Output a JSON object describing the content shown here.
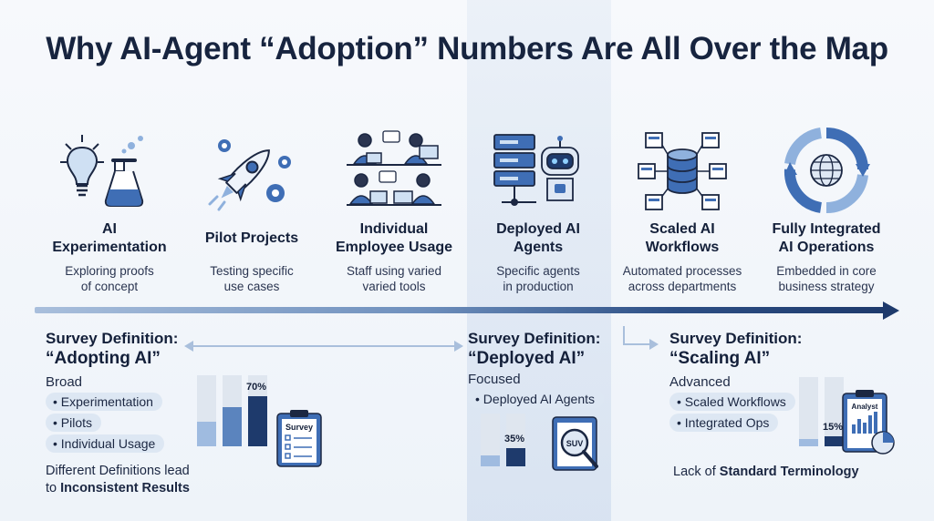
{
  "title": "Why AI-Agent “Adoption” Numbers Are All Over the Map",
  "stages": [
    {
      "title": "AI\nExperimentation",
      "desc": "Exploring proofs\nof concept",
      "icon": "lightbulb-flask-icon"
    },
    {
      "title": "Pilot Projects",
      "desc": "Testing specific\nuse cases",
      "icon": "rocket-gears-icon"
    },
    {
      "title": "Individual\nEmployee Usage",
      "desc": "Staff using varied\nvaried tools",
      "icon": "employees-laptops-icon"
    },
    {
      "title": "Deployed AI\nAgents",
      "desc": "Specific agents\nin production",
      "icon": "robot-server-icon"
    },
    {
      "title": "Scaled AI\nWorkflows",
      "desc": "Automated processes\nacross departments",
      "icon": "database-network-icon"
    },
    {
      "title": "Fully Integrated\nAI Operations",
      "desc": "Embedded in core\nbusiness strategy",
      "icon": "globe-cycle-icon"
    }
  ],
  "surveys": [
    {
      "title": "Survey Definition:",
      "quote": "“Adopting AI”",
      "scope": "Broad",
      "items": [
        "Experimentation",
        "Pilots",
        "Individual Usage"
      ],
      "chart_label": "70%",
      "clipboard_label": "Survey"
    },
    {
      "title": "Survey Definition:",
      "quote": "“Deployed AI”",
      "scope": "Focused",
      "items": [
        "Deployed AI Agents"
      ],
      "chart_label": "35%",
      "clipboard_label": "SUV"
    },
    {
      "title": "Survey Definition:",
      "quote": "“Scaling AI”",
      "scope": "Advanced",
      "items": [
        "Scaled Workflows",
        "Integrated Ops"
      ],
      "chart_label": "15%",
      "clipboard_label": "Analyst"
    }
  ],
  "footnotes": {
    "left_line1": "Different Definitions lead",
    "left_line2_prefix": "to ",
    "left_line2_bold": "Inconsistent Results",
    "right_prefix": "Lack of ",
    "right_bold": "Standard Terminology"
  },
  "chart_data": [
    {
      "type": "bar",
      "values": [
        0.35,
        0.55,
        0.7
      ],
      "highlight_label": "70%"
    },
    {
      "type": "bar",
      "values": [
        0.2,
        0.35
      ],
      "highlight_label": "35%"
    },
    {
      "type": "bar",
      "values": [
        0.1,
        0.15
      ],
      "highlight_label": "15%"
    }
  ],
  "colors": {
    "dark_navy": "#1e3a6c",
    "mid_blue": "#5b84be",
    "light_blue": "#9fbbe0",
    "pill": "#dde7f3"
  }
}
